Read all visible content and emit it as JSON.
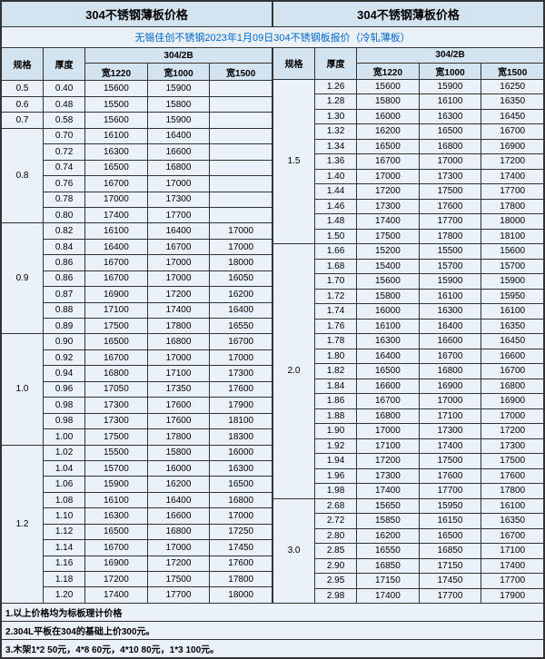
{
  "title": "304不锈钢薄板价格",
  "subtitle": "无锡佳创不锈钢2023年1月09日304不锈钢板报价（冷轧薄板）",
  "colHeaders": {
    "spec": "规格",
    "thick": "厚度",
    "grade": "304/2B",
    "w1220": "宽1220",
    "w1000": "宽1000",
    "w1500": "宽1500"
  },
  "leftGroups": [
    {
      "spec": "0.5",
      "rows": [
        [
          "0.40",
          "15600",
          "15900",
          ""
        ]
      ]
    },
    {
      "spec": "0.6",
      "rows": [
        [
          "0.48",
          "15500",
          "15800",
          ""
        ]
      ]
    },
    {
      "spec": "0.7",
      "rows": [
        [
          "0.58",
          "15600",
          "15900",
          ""
        ]
      ]
    },
    {
      "spec": "0.8",
      "rows": [
        [
          "0.70",
          "16100",
          "16400",
          ""
        ],
        [
          "0.72",
          "16300",
          "16600",
          ""
        ],
        [
          "0.74",
          "16500",
          "16800",
          ""
        ],
        [
          "0.76",
          "16700",
          "17000",
          ""
        ],
        [
          "0.78",
          "17000",
          "17300",
          ""
        ],
        [
          "0.80",
          "17400",
          "17700",
          ""
        ]
      ]
    },
    {
      "spec": "0.9",
      "rows": [
        [
          "0.82",
          "16100",
          "16400",
          "17000"
        ],
        [
          "0.84",
          "16400",
          "16700",
          "17000"
        ],
        [
          "0.86",
          "16700",
          "17000",
          "18000"
        ],
        [
          "0.86",
          "16700",
          "17000",
          "16050"
        ],
        [
          "0.87",
          "16900",
          "17200",
          "16200"
        ],
        [
          "0.88",
          "17100",
          "17400",
          "16400"
        ],
        [
          "0.89",
          "17500",
          "17800",
          "16550"
        ]
      ]
    },
    {
      "spec": "1.0",
      "rows": [
        [
          "0.90",
          "16500",
          "16800",
          "16700"
        ],
        [
          "0.92",
          "16700",
          "17000",
          "17000"
        ],
        [
          "0.94",
          "16800",
          "17100",
          "17300"
        ],
        [
          "0.96",
          "17050",
          "17350",
          "17600"
        ],
        [
          "0.98",
          "17300",
          "17600",
          "17900"
        ],
        [
          "0.98",
          "17300",
          "17600",
          "18100"
        ],
        [
          "1.00",
          "17500",
          "17800",
          "18300"
        ]
      ]
    },
    {
      "spec": "1.2",
      "rows": [
        [
          "1.02",
          "15500",
          "15800",
          "16000"
        ],
        [
          "1.04",
          "15700",
          "16000",
          "16300"
        ],
        [
          "1.06",
          "15900",
          "16200",
          "16500"
        ],
        [
          "1.08",
          "16100",
          "16400",
          "16800"
        ],
        [
          "1.10",
          "16300",
          "16600",
          "17000"
        ],
        [
          "1.12",
          "16500",
          "16800",
          "17250"
        ],
        [
          "1.14",
          "16700",
          "17000",
          "17450"
        ],
        [
          "1.16",
          "16900",
          "17200",
          "17600"
        ],
        [
          "1.18",
          "17200",
          "17500",
          "17800"
        ],
        [
          "1.20",
          "17400",
          "17700",
          "18000"
        ]
      ]
    }
  ],
  "rightGroups": [
    {
      "spec": "1.5",
      "rows": [
        [
          "1.26",
          "15600",
          "15900",
          "16250"
        ],
        [
          "1.28",
          "15800",
          "16100",
          "16350"
        ],
        [
          "1.30",
          "16000",
          "16300",
          "16450"
        ],
        [
          "1.32",
          "16200",
          "16500",
          "16700"
        ],
        [
          "1.34",
          "16500",
          "16800",
          "16900"
        ],
        [
          "1.36",
          "16700",
          "17000",
          "17200"
        ],
        [
          "1.40",
          "17000",
          "17300",
          "17400"
        ],
        [
          "1.44",
          "17200",
          "17500",
          "17700"
        ],
        [
          "1.46",
          "17300",
          "17600",
          "17800"
        ],
        [
          "1.48",
          "17400",
          "17700",
          "18000"
        ],
        [
          "1.50",
          "17500",
          "17800",
          "18100"
        ]
      ]
    },
    {
      "spec": "2.0",
      "rows": [
        [
          "1.66",
          "15200",
          "15500",
          "15600"
        ],
        [
          "1.68",
          "15400",
          "15700",
          "15700"
        ],
        [
          "1.70",
          "15600",
          "15900",
          "15900"
        ],
        [
          "1.72",
          "15800",
          "16100",
          "15950"
        ],
        [
          "1.74",
          "16000",
          "16300",
          "16100"
        ],
        [
          "1.76",
          "16100",
          "16400",
          "16350"
        ],
        [
          "1.78",
          "16300",
          "16600",
          "16450"
        ],
        [
          "1.80",
          "16400",
          "16700",
          "16600"
        ],
        [
          "1.82",
          "16500",
          "16800",
          "16700"
        ],
        [
          "1.84",
          "16600",
          "16900",
          "16800"
        ],
        [
          "1.86",
          "16700",
          "17000",
          "16900"
        ],
        [
          "1.88",
          "16800",
          "17100",
          "17000"
        ],
        [
          "1.90",
          "17000",
          "17300",
          "17200"
        ],
        [
          "1.92",
          "17100",
          "17400",
          "17300"
        ],
        [
          "1.94",
          "17200",
          "17500",
          "17500"
        ],
        [
          "1.96",
          "17300",
          "17600",
          "17600"
        ],
        [
          "1.98",
          "17400",
          "17700",
          "17800"
        ]
      ]
    },
    {
      "spec": "3.0",
      "rows": [
        [
          "2.68",
          "15650",
          "15950",
          "16100"
        ],
        [
          "2.72",
          "15850",
          "16150",
          "16350"
        ],
        [
          "2.80",
          "16200",
          "16500",
          "16700"
        ],
        [
          "2.85",
          "16550",
          "16850",
          "17100"
        ],
        [
          "2.90",
          "16850",
          "17150",
          "17400"
        ],
        [
          "2.95",
          "17150",
          "17450",
          "17700"
        ],
        [
          "2.98",
          "17400",
          "17700",
          "17900"
        ]
      ]
    }
  ],
  "notes": [
    "1.以上价格均为标板理计价格",
    "2.304L平板在304的基础上价300元。",
    "3.木架1*2 50元，4*8 60元，4*10 80元，1*3 100元。"
  ]
}
